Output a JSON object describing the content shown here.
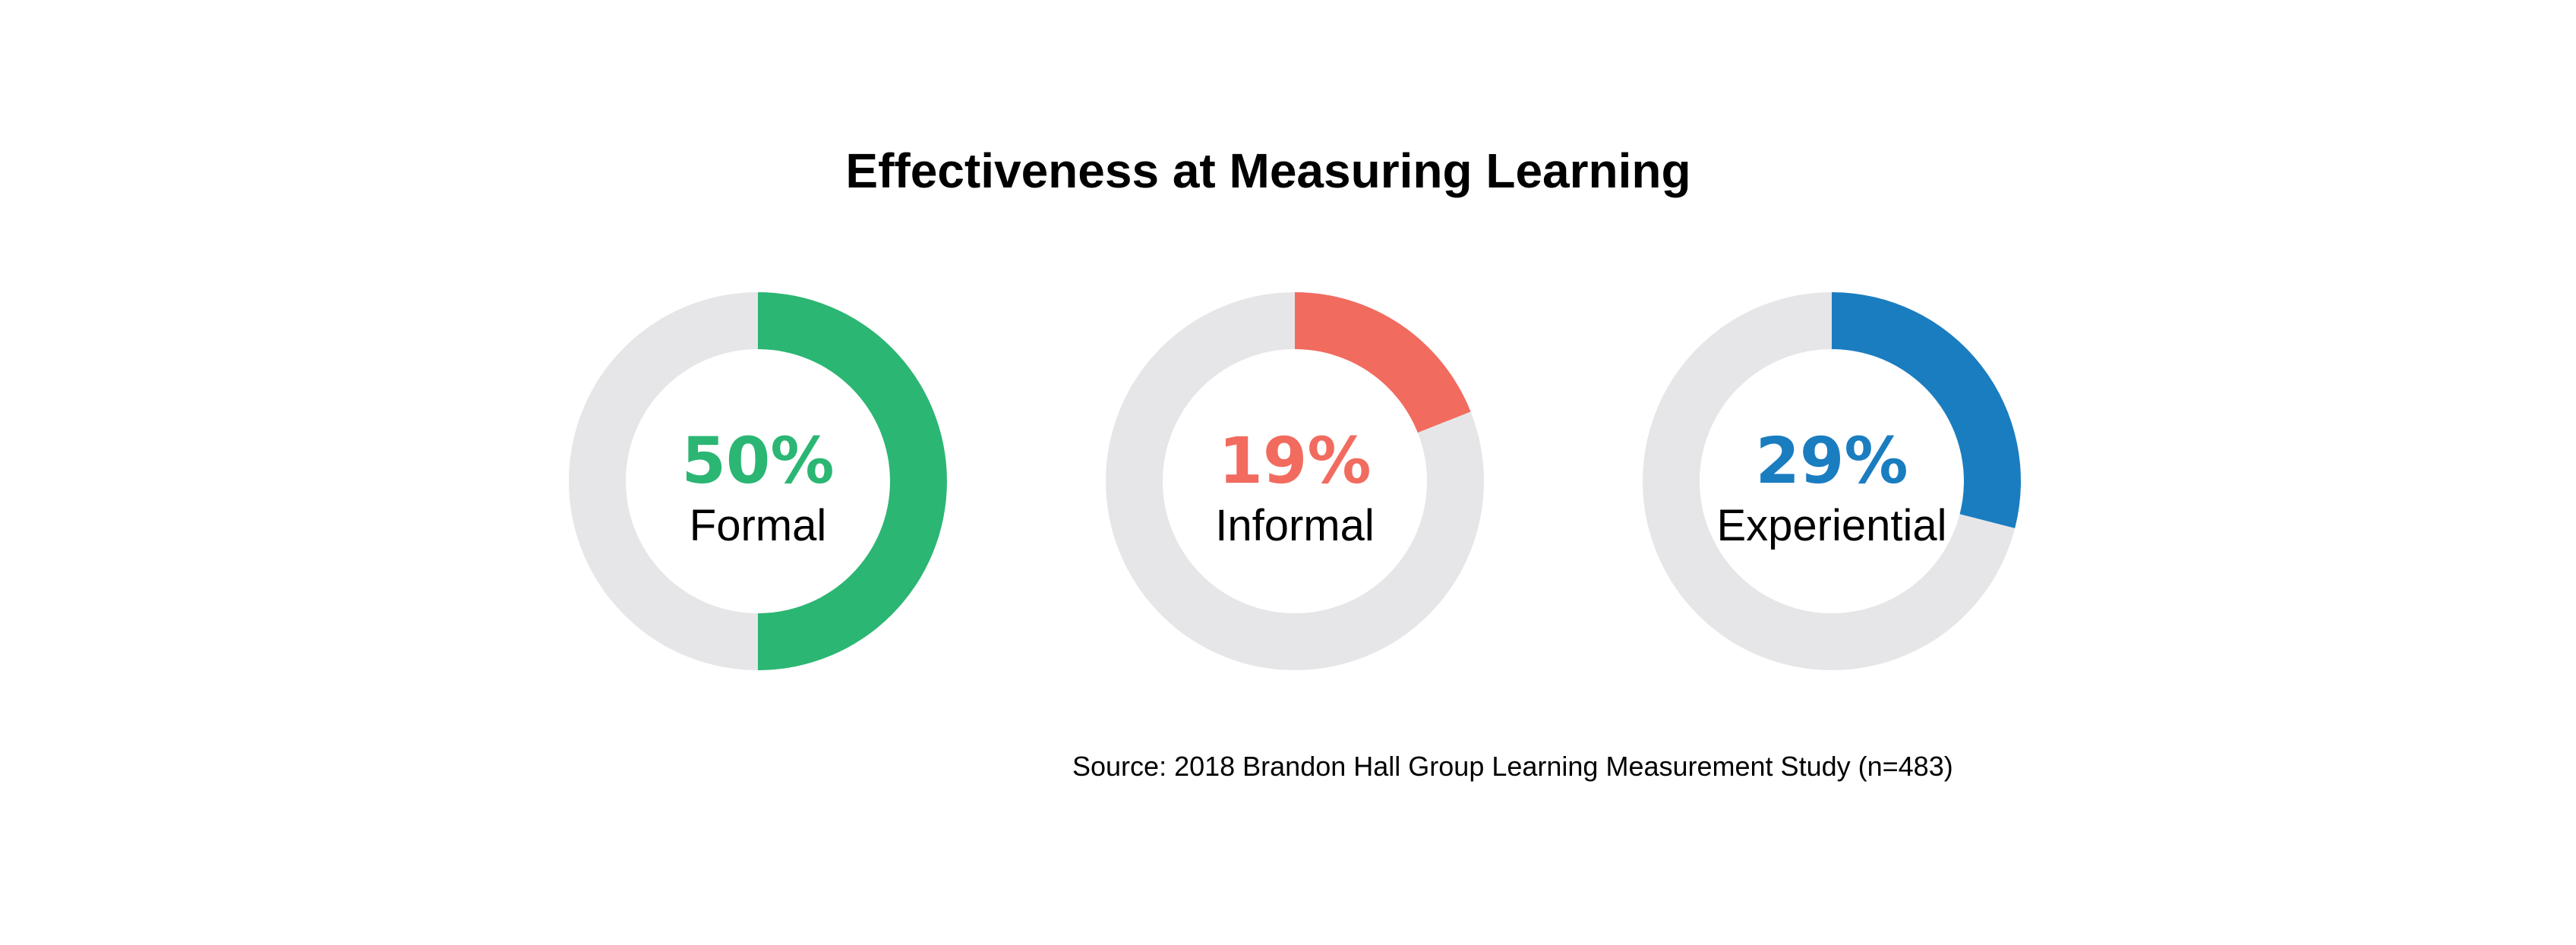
{
  "chart_data": {
    "type": "pie",
    "subtype": "donut",
    "title": "Effectiveness at Measuring Learning",
    "source": "Source: 2018 Brandon Hall Group Learning Measurement Study (n=483)",
    "track_color": "#E6E6E8",
    "items": [
      {
        "label": "Formal",
        "value": 50,
        "display": "50%",
        "color": "#2BB673"
      },
      {
        "label": "Informal",
        "value": 19,
        "display": "19%",
        "color": "#F26B5F"
      },
      {
        "label": "Experiential",
        "value": 29,
        "display": "29%",
        "color": "#1A7DC0"
      }
    ]
  }
}
